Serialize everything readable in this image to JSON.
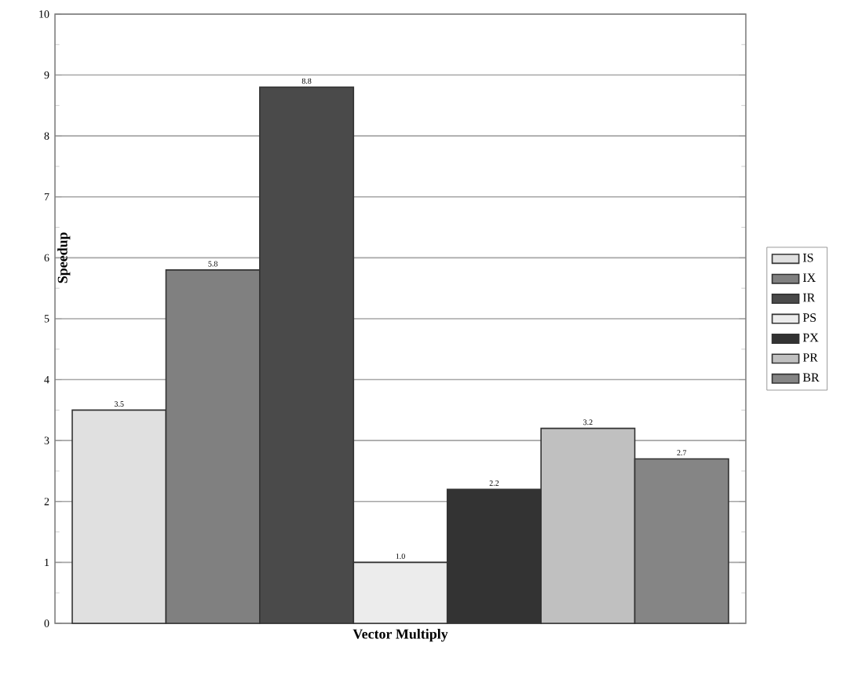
{
  "chart_data": {
    "type": "bar",
    "xlabel": "Vector Multiply",
    "ylabel": "Speedup",
    "categories": [
      null
    ],
    "series": [
      {
        "name": "IS",
        "color": "#e0e0e0",
        "values": [
          3.5
        ],
        "value_labels": [
          "3.5"
        ]
      },
      {
        "name": "IX",
        "color": "#808080",
        "values": [
          5.8
        ],
        "value_labels": [
          "5.8"
        ]
      },
      {
        "name": "IR",
        "color": "#4a4a4a",
        "values": [
          8.8
        ],
        "value_labels": [
          "8.8"
        ]
      },
      {
        "name": "PS",
        "color": "#ececec",
        "values": [
          1.0
        ],
        "value_labels": [
          "1.0"
        ]
      },
      {
        "name": "PX",
        "color": "#333333",
        "values": [
          2.2
        ],
        "value_labels": [
          "2.2"
        ]
      },
      {
        "name": "PR",
        "color": "#c0c0c0",
        "values": [
          3.2
        ],
        "value_labels": [
          "3.2"
        ]
      },
      {
        "name": "BR",
        "color": "#858585",
        "values": [
          2.7
        ],
        "value_labels": [
          "2.7"
        ]
      }
    ],
    "ylim": [
      0,
      10
    ],
    "yticks": [
      0,
      1,
      2,
      3,
      4,
      5,
      6,
      7,
      8,
      9,
      10
    ],
    "grid": "y",
    "legend": "right"
  }
}
